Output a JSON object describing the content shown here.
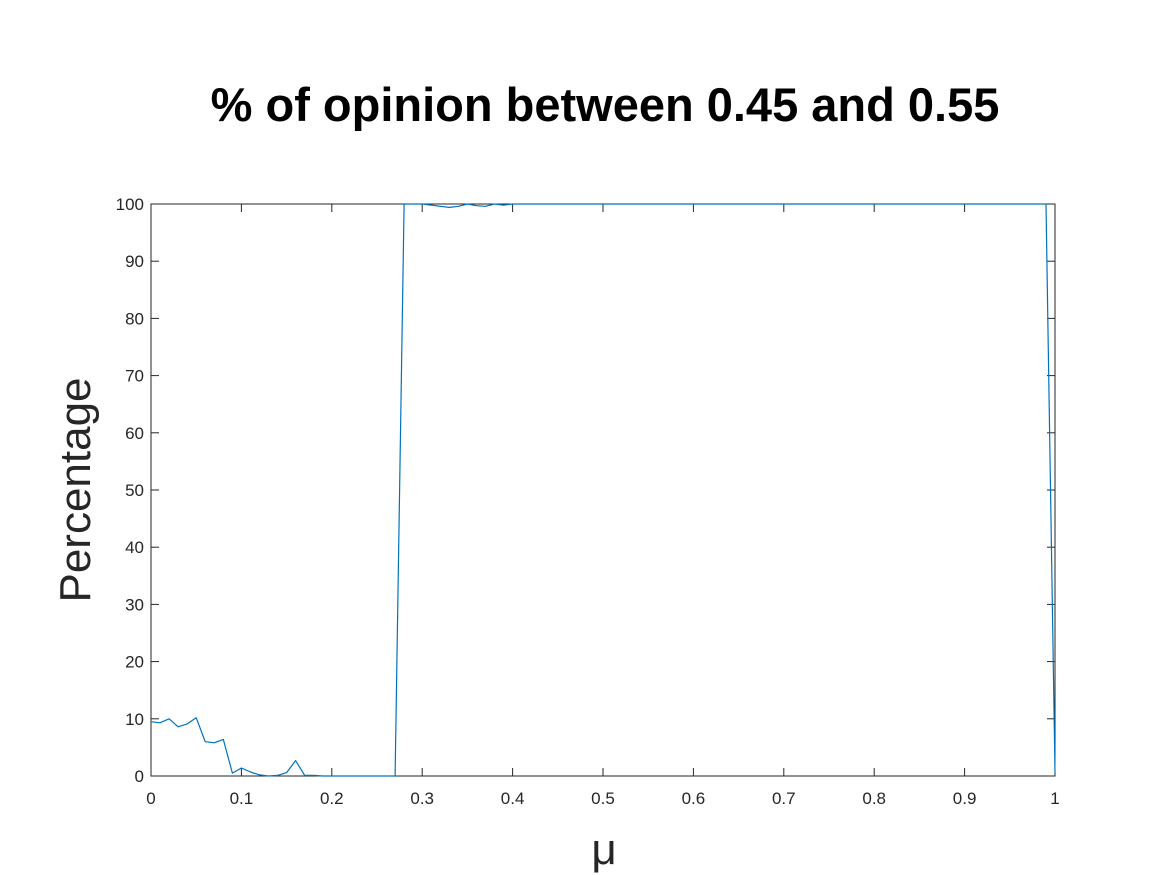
{
  "chart_data": {
    "type": "line",
    "title": "% of opinion between 0.45 and 0.55",
    "xlabel": "μ",
    "ylabel": "Percentage",
    "xlim": [
      0,
      1
    ],
    "ylim": [
      0,
      100
    ],
    "xticks": [
      0,
      0.1,
      0.2,
      0.3,
      0.4,
      0.5,
      0.6,
      0.7,
      0.8,
      0.9,
      1
    ],
    "xtick_labels": [
      "0",
      "0.1",
      "0.2",
      "0.3",
      "0.4",
      "0.5",
      "0.6",
      "0.7",
      "0.8",
      "0.9",
      "1"
    ],
    "yticks": [
      0,
      10,
      20,
      30,
      40,
      50,
      60,
      70,
      80,
      90,
      100
    ],
    "ytick_labels": [
      "0",
      "10",
      "20",
      "30",
      "40",
      "50",
      "60",
      "70",
      "80",
      "90",
      "100"
    ],
    "grid": false,
    "series": [
      {
        "color": "#0072BD",
        "x": [
          0,
          0.01,
          0.02,
          0.03,
          0.04,
          0.05,
          0.06,
          0.07,
          0.08,
          0.09,
          0.1,
          0.11,
          0.12,
          0.13,
          0.14,
          0.15,
          0.16,
          0.17,
          0.18,
          0.19,
          0.2,
          0.21,
          0.22,
          0.23,
          0.24,
          0.25,
          0.26,
          0.27,
          0.28,
          0.29,
          0.3,
          0.31,
          0.32,
          0.33,
          0.34,
          0.35,
          0.36,
          0.37,
          0.38,
          0.39,
          0.4,
          0.45,
          0.5,
          0.55,
          0.6,
          0.65,
          0.7,
          0.75,
          0.8,
          0.85,
          0.9,
          0.95,
          0.99,
          1
        ],
        "y": [
          9.5,
          9.3,
          10.0,
          8.6,
          9.1,
          10.2,
          6.0,
          5.8,
          6.4,
          0.5,
          1.4,
          0.7,
          0.2,
          0.0,
          0.1,
          0.6,
          2.7,
          0.1,
          0.1,
          0.0,
          0.0,
          0.0,
          0.0,
          0.0,
          0.0,
          0.0,
          0.0,
          0.0,
          100,
          100,
          100,
          99.8,
          99.6,
          99.4,
          99.6,
          100,
          99.7,
          99.6,
          100,
          99.8,
          100,
          100,
          100,
          100,
          100,
          100,
          100,
          100,
          100,
          100,
          100,
          100,
          100,
          0.5
        ]
      }
    ]
  }
}
